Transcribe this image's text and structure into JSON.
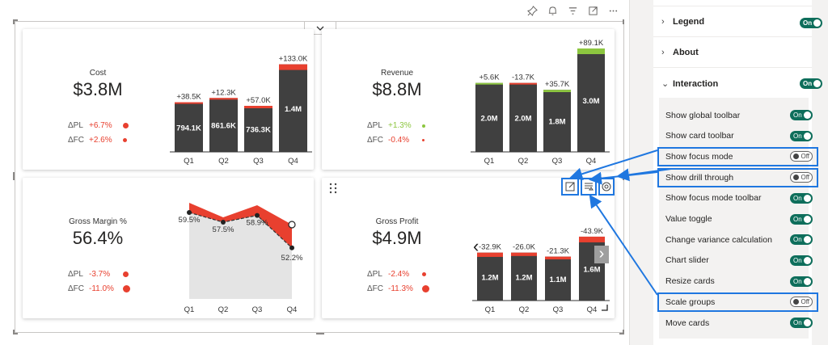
{
  "toolbar": {
    "icons": [
      "pin-icon",
      "bell-icon",
      "filter-icon",
      "focus-mode-icon",
      "more-icon"
    ]
  },
  "cards": {
    "cost": {
      "title": "Cost",
      "value": "$3.8M",
      "pl_label": "ΔPL",
      "pl_value": "+6.7%",
      "fc_label": "ΔFC",
      "fc_value": "+2.6%"
    },
    "revenue": {
      "title": "Revenue",
      "value": "$8.8M",
      "pl_label": "ΔPL",
      "pl_value": "+1.3%",
      "fc_label": "ΔFC",
      "fc_value": "-0.4%"
    },
    "gross_margin": {
      "title": "Gross Margin %",
      "value": "56.4%",
      "pl_label": "ΔPL",
      "pl_value": "-3.7%",
      "fc_label": "ΔFC",
      "fc_value": "-11.0%"
    },
    "gross_profit": {
      "title": "Gross Profit",
      "value": "$4.9M",
      "pl_label": "ΔPL",
      "pl_value": "-2.4%",
      "fc_label": "ΔFC",
      "fc_value": "-11.3%",
      "nav_prev": "‹",
      "nav_next": "›"
    }
  },
  "chart_data": [
    {
      "type": "bar",
      "title": "Cost",
      "categories": [
        "Q1",
        "Q2",
        "Q3",
        "Q4"
      ],
      "value_labels": [
        "794.1K",
        "861.6K",
        "736.3K",
        "1.4M"
      ],
      "values": [
        794.1,
        861.6,
        736.3,
        1400
      ],
      "variance_labels": [
        "+38.5K",
        "+12.3K",
        "+57.0K",
        "+133.0K"
      ],
      "variances": [
        38.5,
        12.3,
        57.0,
        133.0
      ]
    },
    {
      "type": "bar",
      "title": "Revenue",
      "categories": [
        "Q1",
        "Q2",
        "Q3",
        "Q4"
      ],
      "value_labels": [
        "2.0M",
        "2.0M",
        "1.8M",
        "3.0M"
      ],
      "values": [
        2000,
        2000,
        1800,
        3000
      ],
      "variance_labels": [
        "+5.6K",
        "-13.7K",
        "+35.7K",
        "+89.1K"
      ],
      "variances": [
        5.6,
        -13.7,
        35.7,
        89.1
      ]
    },
    {
      "type": "line",
      "title": "Gross Margin %",
      "categories": [
        "Q1",
        "Q2",
        "Q3",
        "Q4"
      ],
      "value_labels": [
        "59.5%",
        "57.5%",
        "58.9%",
        "52.2%"
      ],
      "values": [
        59.5,
        57.5,
        58.9,
        52.2
      ],
      "plan": [
        61.5,
        58.5,
        61.0,
        57.0
      ]
    },
    {
      "type": "bar",
      "title": "Gross Profit",
      "categories": [
        "Q1",
        "Q2",
        "Q3",
        "Q4"
      ],
      "value_labels": [
        "1.2M",
        "1.2M",
        "1.1M",
        "1.6M"
      ],
      "values": [
        1200,
        1200,
        1100,
        1600
      ],
      "variance_labels": [
        "-32.9K",
        "-26.0K",
        "-21.3K",
        "-43.9K"
      ],
      "variances": [
        -32.9,
        -26.0,
        -21.3,
        -43.9
      ]
    }
  ],
  "panel": {
    "sections": [
      {
        "label": "Legend",
        "toggle": "On",
        "caret": "›"
      },
      {
        "label": "About",
        "caret": "›"
      },
      {
        "label": "Interaction",
        "toggle": "On",
        "caret": "⌄"
      }
    ],
    "options": [
      {
        "label": "Show global toolbar",
        "toggle": "On"
      },
      {
        "label": "Show card toolbar",
        "toggle": "On"
      },
      {
        "label": "Show focus mode",
        "toggle": "Off"
      },
      {
        "label": "Show drill through",
        "toggle": "Off"
      },
      {
        "label": "Show focus mode toolbar",
        "toggle": "On"
      },
      {
        "label": "Value toggle",
        "toggle": "On"
      },
      {
        "label": "Change variance calculation",
        "toggle": "On"
      },
      {
        "label": "Chart slider",
        "toggle": "On"
      },
      {
        "label": "Resize cards",
        "toggle": "On"
      },
      {
        "label": "Scale groups",
        "toggle": "Off"
      },
      {
        "label": "Move cards",
        "toggle": "On"
      }
    ]
  },
  "colors": {
    "accent": "#0e6e5b",
    "bar": "#404040",
    "negative": "#e8402f",
    "positive": "#8cc63f",
    "highlight": "#1f77e0"
  }
}
